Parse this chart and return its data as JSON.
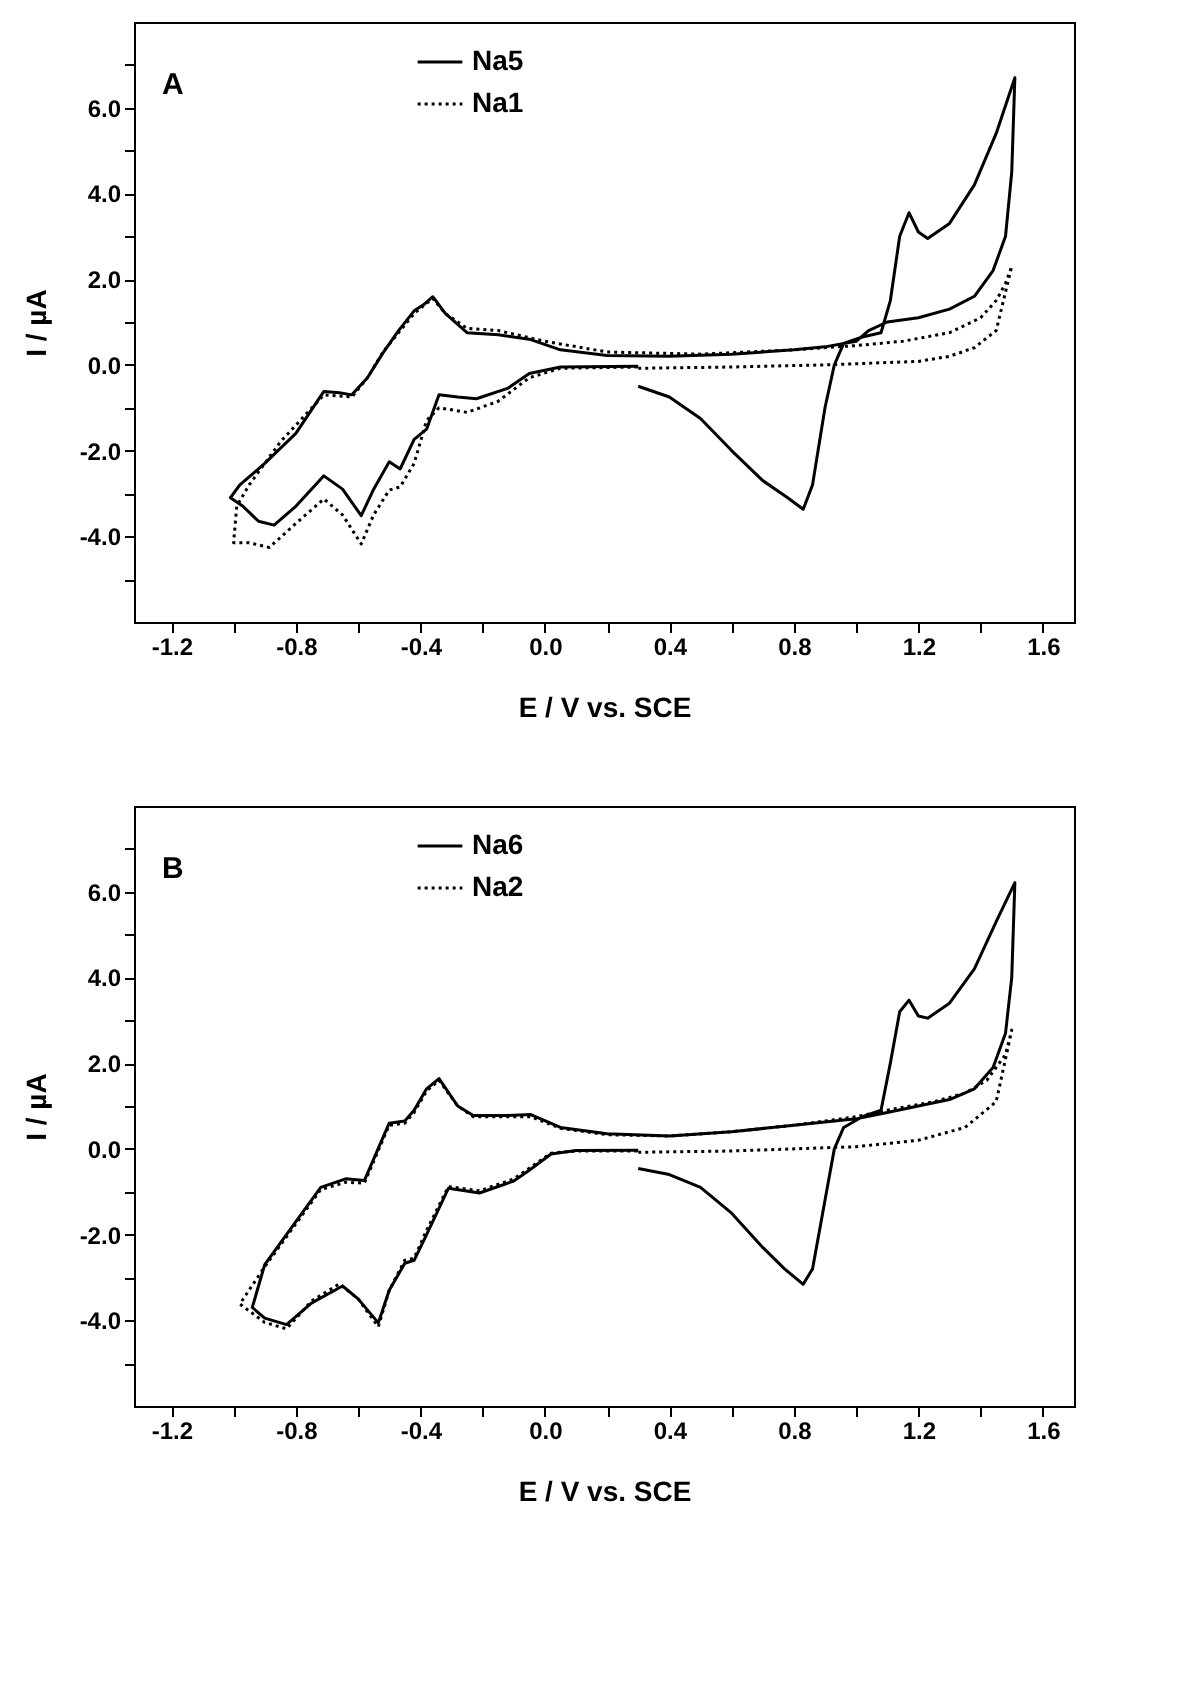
{
  "chart_data": [
    {
      "type": "line",
      "xlabel": "E / V vs. SCE",
      "ylabel": "I / µA",
      "annotations": [
        "A"
      ],
      "legend": "top",
      "grid": false,
      "xlim": [
        -1.32,
        1.7
      ],
      "ylim": [
        -6,
        8
      ],
      "xticks": [
        {
          "value": -1.2,
          "label": "-1.2"
        },
        {
          "value": -1.0,
          "label": null
        },
        {
          "value": -0.8,
          "label": "-0.8"
        },
        {
          "value": -0.6,
          "label": null
        },
        {
          "value": -0.4,
          "label": "-0.4"
        },
        {
          "value": -0.2,
          "label": null
        },
        {
          "value": 0.0,
          "label": "0.0"
        },
        {
          "value": 0.2,
          "label": null
        },
        {
          "value": 0.4,
          "label": "0.4"
        },
        {
          "value": 0.6,
          "label": null
        },
        {
          "value": 0.8,
          "label": "0.8"
        },
        {
          "value": 1.0,
          "label": null
        },
        {
          "value": 1.2,
          "label": "1.2"
        },
        {
          "value": 1.4,
          "label": null
        },
        {
          "value": 1.6,
          "label": "1.6"
        }
      ],
      "yticks": [
        {
          "value": -5,
          "label": null
        },
        {
          "value": -4,
          "label": "-4.0"
        },
        {
          "value": -3,
          "label": null
        },
        {
          "value": -2,
          "label": "-2.0"
        },
        {
          "value": -1,
          "label": null
        },
        {
          "value": 0,
          "label": "0.0"
        },
        {
          "value": 1,
          "label": null
        },
        {
          "value": 2,
          "label": "2.0"
        },
        {
          "value": 3,
          "label": null
        },
        {
          "value": 4,
          "label": "4.0"
        },
        {
          "value": 5,
          "label": null
        },
        {
          "value": 6,
          "label": "6.0"
        },
        {
          "value": 7,
          "label": null
        }
      ],
      "series": [
        {
          "name": "Na5",
          "color": "#000000",
          "line_style": "solid",
          "x": [
            0.3,
            0.4,
            0.5,
            0.6,
            0.7,
            0.78,
            0.83,
            0.86,
            0.9,
            0.93,
            0.96,
            1.02,
            1.08,
            1.11,
            1.14,
            1.17,
            1.2,
            1.23,
            1.3,
            1.38,
            1.45,
            1.51,
            1.5,
            1.48,
            1.44,
            1.38,
            1.3,
            1.2,
            1.1,
            1.04,
            1.0,
            0.9,
            0.8,
            0.6,
            0.4,
            0.2,
            0.05,
            -0.05,
            -0.15,
            -0.25,
            -0.32,
            -0.36,
            -0.39,
            -0.42,
            -0.47,
            -0.52,
            -0.57,
            -0.62,
            -0.66,
            -0.71,
            -0.8,
            -0.9,
            -0.98,
            -1.01,
            -0.97,
            -0.92,
            -0.87,
            -0.8,
            -0.71,
            -0.65,
            -0.59,
            -0.55,
            -0.5,
            -0.465,
            -0.42,
            -0.38,
            -0.34,
            -0.28,
            -0.22,
            -0.12,
            -0.05,
            0.05,
            0.3
          ],
          "values": [
            -0.5,
            -0.75,
            -1.25,
            -2.0,
            -2.7,
            -3.1,
            -3.37,
            -2.8,
            -1.0,
            0.0,
            0.5,
            0.65,
            0.75,
            1.5,
            3.0,
            3.55,
            3.1,
            2.95,
            3.3,
            4.2,
            5.4,
            6.7,
            4.5,
            3.0,
            2.2,
            1.6,
            1.3,
            1.1,
            1.0,
            0.8,
            0.55,
            0.42,
            0.35,
            0.25,
            0.2,
            0.22,
            0.35,
            0.6,
            0.7,
            0.75,
            1.2,
            1.59,
            1.4,
            1.26,
            0.8,
            0.28,
            -0.3,
            -0.7,
            -0.65,
            -0.62,
            -1.6,
            -2.3,
            -2.8,
            -3.1,
            -3.3,
            -3.65,
            -3.74,
            -3.3,
            -2.59,
            -2.9,
            -3.52,
            -2.9,
            -2.26,
            -2.43,
            -1.74,
            -1.5,
            -0.7,
            -0.75,
            -0.79,
            -0.55,
            -0.2,
            -0.05,
            -0.03
          ]
        },
        {
          "name": "Na1",
          "color": "#000000",
          "line_style": "dotted",
          "x": [
            0.3,
            0.6,
            0.9,
            1.2,
            1.3,
            1.38,
            1.45,
            1.5,
            1.48,
            1.45,
            1.4,
            1.3,
            1.15,
            1.0,
            0.8,
            0.5,
            0.2,
            0.0,
            -0.15,
            -0.25,
            -0.32,
            -0.36,
            -0.42,
            -0.52,
            -0.57,
            -0.62,
            -0.71,
            -0.85,
            -0.95,
            -0.99,
            -1.0,
            -0.95,
            -0.885,
            -0.8,
            -0.71,
            -0.65,
            -0.59,
            -0.55,
            -0.5,
            -0.465,
            -0.42,
            -0.38,
            -0.34,
            -0.25,
            -0.15,
            -0.05,
            0.05,
            0.3
          ],
          "values": [
            -0.08,
            -0.05,
            0.0,
            0.08,
            0.2,
            0.4,
            0.8,
            2.3,
            1.9,
            1.5,
            1.1,
            0.75,
            0.55,
            0.45,
            0.35,
            0.25,
            0.3,
            0.55,
            0.8,
            0.85,
            1.2,
            1.55,
            1.2,
            0.3,
            -0.3,
            -0.75,
            -0.7,
            -1.8,
            -2.8,
            -3.3,
            -4.15,
            -4.15,
            -4.26,
            -3.7,
            -3.13,
            -3.5,
            -4.18,
            -3.5,
            -2.92,
            -2.85,
            -2.3,
            -1.3,
            -1.0,
            -1.11,
            -0.85,
            -0.3,
            -0.08,
            -0.05
          ]
        }
      ]
    },
    {
      "type": "line",
      "xlabel": "E / V vs. SCE",
      "ylabel": "I / µA",
      "annotations": [
        "B"
      ],
      "legend": "top",
      "grid": false,
      "xlim": [
        -1.32,
        1.7
      ],
      "ylim": [
        -6,
        8
      ],
      "xticks": [
        {
          "value": -1.2,
          "label": "-1.2"
        },
        {
          "value": -1.0,
          "label": null
        },
        {
          "value": -0.8,
          "label": "-0.8"
        },
        {
          "value": -0.6,
          "label": null
        },
        {
          "value": -0.4,
          "label": "-0.4"
        },
        {
          "value": -0.2,
          "label": null
        },
        {
          "value": 0.0,
          "label": "0.0"
        },
        {
          "value": 0.2,
          "label": null
        },
        {
          "value": 0.4,
          "label": "0.4"
        },
        {
          "value": 0.6,
          "label": null
        },
        {
          "value": 0.8,
          "label": "0.8"
        },
        {
          "value": 1.0,
          "label": null
        },
        {
          "value": 1.2,
          "label": "1.2"
        },
        {
          "value": 1.4,
          "label": null
        },
        {
          "value": 1.6,
          "label": "1.6"
        }
      ],
      "yticks": [
        {
          "value": -5,
          "label": null
        },
        {
          "value": -4,
          "label": "-4.0"
        },
        {
          "value": -3,
          "label": null
        },
        {
          "value": -2,
          "label": "-2.0"
        },
        {
          "value": -1,
          "label": null
        },
        {
          "value": 0,
          "label": "0.0"
        },
        {
          "value": 1,
          "label": null
        },
        {
          "value": 2,
          "label": "2.0"
        },
        {
          "value": 3,
          "label": null
        },
        {
          "value": 4,
          "label": "4.0"
        },
        {
          "value": 5,
          "label": null
        },
        {
          "value": 6,
          "label": "6.0"
        },
        {
          "value": 7,
          "label": null
        }
      ],
      "series": [
        {
          "name": "Na6",
          "color": "#000000",
          "line_style": "solid",
          "x": [
            0.3,
            0.4,
            0.5,
            0.6,
            0.7,
            0.77,
            0.83,
            0.86,
            0.9,
            0.93,
            0.96,
            1.02,
            1.08,
            1.11,
            1.14,
            1.17,
            1.2,
            1.23,
            1.3,
            1.38,
            1.45,
            1.51,
            1.5,
            1.48,
            1.44,
            1.38,
            1.3,
            1.2,
            1.1,
            1.0,
            0.8,
            0.6,
            0.4,
            0.2,
            0.05,
            -0.045,
            -0.12,
            -0.23,
            -0.28,
            -0.34,
            -0.38,
            -0.42,
            -0.45,
            -0.5,
            -0.53,
            -0.58,
            -0.64,
            -0.72,
            -0.8,
            -0.9,
            -0.94,
            -0.9,
            -0.83,
            -0.75,
            -0.65,
            -0.6,
            -0.535,
            -0.5,
            -0.45,
            -0.42,
            -0.38,
            -0.31,
            -0.21,
            -0.1,
            -0.05,
            0.02,
            0.1,
            0.3
          ],
          "values": [
            -0.46,
            -0.6,
            -0.9,
            -1.5,
            -2.3,
            -2.8,
            -3.16,
            -2.8,
            -1.2,
            0.0,
            0.5,
            0.75,
            0.9,
            2.0,
            3.2,
            3.47,
            3.1,
            3.05,
            3.4,
            4.2,
            5.3,
            6.21,
            4.0,
            2.7,
            1.9,
            1.4,
            1.15,
            1.0,
            0.85,
            0.7,
            0.55,
            0.4,
            0.3,
            0.35,
            0.5,
            0.8,
            0.78,
            0.78,
            1.0,
            1.64,
            1.4,
            0.9,
            0.65,
            0.6,
            0.1,
            -0.74,
            -0.7,
            -0.9,
            -1.7,
            -2.7,
            -3.7,
            -3.95,
            -4.1,
            -3.6,
            -3.2,
            -3.5,
            -4.06,
            -3.3,
            -2.67,
            -2.6,
            -2.0,
            -0.92,
            -1.03,
            -0.75,
            -0.5,
            -0.12,
            -0.04,
            -0.03
          ]
        },
        {
          "name": "Na2",
          "color": "#000000",
          "line_style": "dotted",
          "x": [
            0.3,
            0.6,
            1.0,
            1.2,
            1.35,
            1.45,
            1.5,
            1.48,
            1.42,
            1.35,
            1.25,
            1.1,
            1.0,
            0.8,
            0.6,
            0.4,
            0.2,
            0.05,
            -0.045,
            -0.12,
            -0.23,
            -0.28,
            -0.34,
            -0.38,
            -0.42,
            -0.45,
            -0.5,
            -0.53,
            -0.58,
            -0.64,
            -0.72,
            -0.8,
            -0.9,
            -0.98,
            -0.9,
            -0.83,
            -0.75,
            -0.66,
            -0.6,
            -0.535,
            -0.5,
            -0.45,
            -0.42,
            -0.38,
            -0.31,
            -0.21,
            -0.1,
            -0.05,
            0.02,
            0.1,
            0.3
          ],
          "values": [
            -0.08,
            -0.05,
            0.05,
            0.2,
            0.5,
            1.1,
            2.77,
            2.2,
            1.6,
            1.3,
            1.1,
            0.9,
            0.75,
            0.55,
            0.4,
            0.3,
            0.33,
            0.48,
            0.75,
            0.75,
            0.75,
            1.0,
            1.6,
            1.35,
            0.85,
            0.6,
            0.55,
            0.05,
            -0.8,
            -0.78,
            -0.95,
            -1.75,
            -2.75,
            -3.62,
            -4.05,
            -4.2,
            -3.55,
            -3.15,
            -3.5,
            -4.15,
            -3.3,
            -2.6,
            -2.55,
            -1.9,
            -0.88,
            -0.98,
            -0.7,
            -0.45,
            -0.1,
            -0.05,
            -0.05
          ]
        }
      ]
    }
  ]
}
